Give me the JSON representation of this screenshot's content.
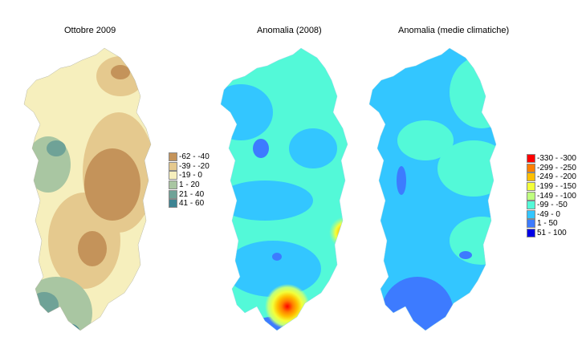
{
  "maps": [
    {
      "title": "Ottobre 2009"
    },
    {
      "title": "Anomalia (2008)"
    },
    {
      "title": "Anomalia (medie climatiche)"
    }
  ],
  "legend_rain": {
    "items": [
      {
        "label": "-62 - -40",
        "color": "#c4935a"
      },
      {
        "label": "-39 - -20",
        "color": "#e5c98e"
      },
      {
        "label": "-19 - 0",
        "color": "#f6efbd"
      },
      {
        "label": "1 - 20",
        "color": "#a9c6a2"
      },
      {
        "label": "21 - 40",
        "color": "#6fa297"
      },
      {
        "label": "41 - 60",
        "color": "#3d8493"
      }
    ]
  },
  "legend_anomaly": {
    "items": [
      {
        "label": "-330 - -300",
        "color": "#ff0000"
      },
      {
        "label": "-299 - -250",
        "color": "#ff7f00"
      },
      {
        "label": "-249 - -200",
        "color": "#ffbf00"
      },
      {
        "label": "-199 - -150",
        "color": "#f3ff3a"
      },
      {
        "label": "-149 - -100",
        "color": "#bfff7f"
      },
      {
        "label": "-99 - -50",
        "color": "#53f9d8"
      },
      {
        "label": "-49 - 0",
        "color": "#33c6ff"
      },
      {
        "label": "1 - 50",
        "color": "#3d7bff"
      },
      {
        "label": "51 - 100",
        "color": "#0000e6"
      }
    ]
  }
}
